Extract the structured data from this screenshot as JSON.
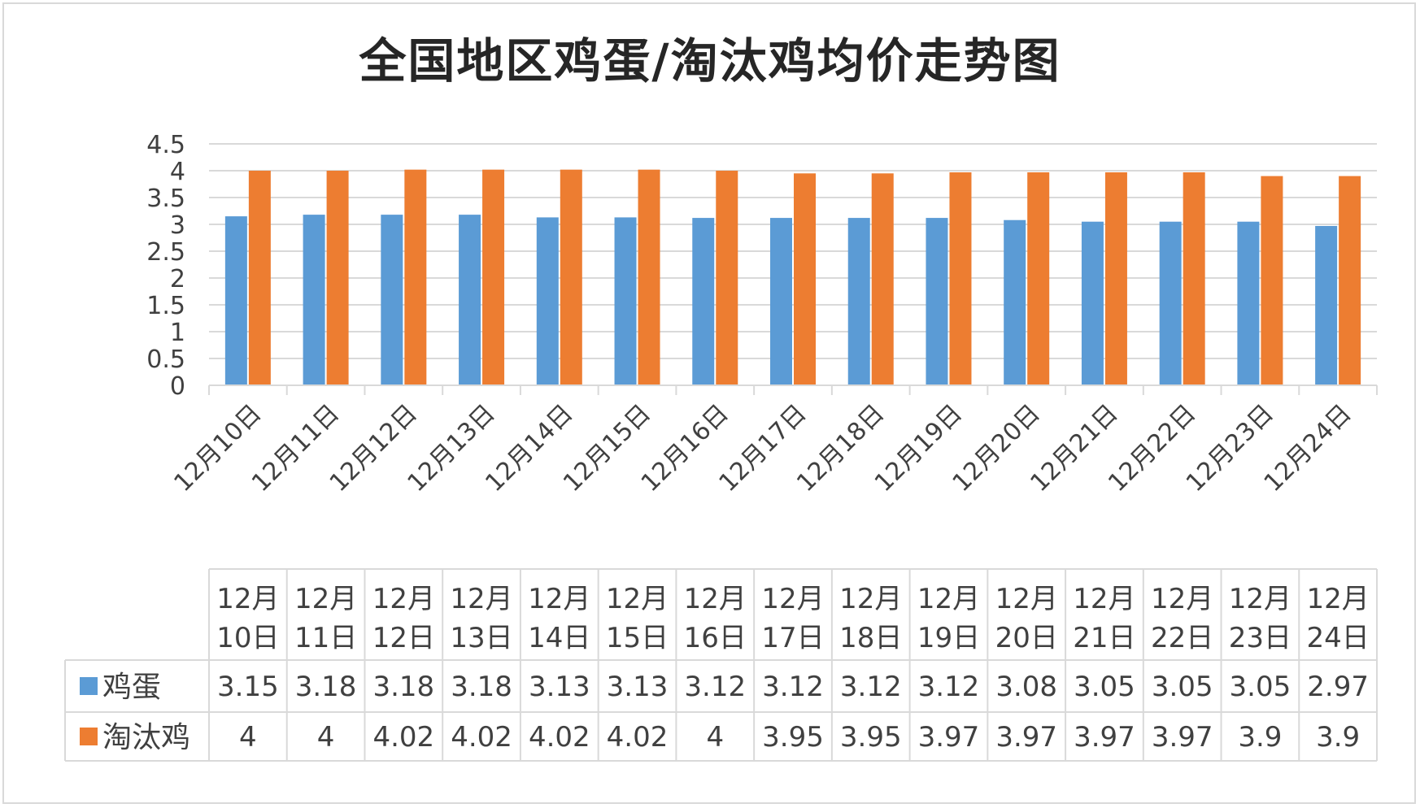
{
  "chart_data": {
    "type": "bar",
    "title": "全国地区鸡蛋/淘汰鸡均价走势图",
    "categories": [
      "12月10日",
      "12月11日",
      "12月12日",
      "12月13日",
      "12月14日",
      "12月15日",
      "12月16日",
      "12月17日",
      "12月18日",
      "12月19日",
      "12月20日",
      "12月21日",
      "12月22日",
      "12月23日",
      "12月24日"
    ],
    "series": [
      {
        "name": "鸡蛋",
        "color": "#5b9bd5",
        "values": [
          3.15,
          3.18,
          3.18,
          3.18,
          3.13,
          3.13,
          3.12,
          3.12,
          3.12,
          3.12,
          3.08,
          3.05,
          3.05,
          3.05,
          2.97
        ]
      },
      {
        "name": "淘汰鸡",
        "color": "#ed7d31",
        "values": [
          4,
          4,
          4.02,
          4.02,
          4.02,
          4.02,
          4,
          3.95,
          3.95,
          3.97,
          3.97,
          3.97,
          3.97,
          3.9,
          3.9
        ]
      }
    ],
    "yticks": [
      "0",
      "0.5",
      "1",
      "1.5",
      "2",
      "2.5",
      "3",
      "3.5",
      "4",
      "4.5"
    ],
    "ylim": [
      0,
      4.5
    ],
    "grid": true,
    "legend": "data-table",
    "table_cells": [
      [
        "3.15",
        "3.18",
        "3.18",
        "3.18",
        "3.13",
        "3.13",
        "3.12",
        "3.12",
        "3.12",
        "3.12",
        "3.08",
        "3.05",
        "3.05",
        "3.05",
        "2.97"
      ],
      [
        "4",
        "4",
        "4.02",
        "4.02",
        "4.02",
        "4.02",
        "4",
        "3.95",
        "3.95",
        "3.97",
        "3.97",
        "3.97",
        "3.97",
        "3.9",
        "3.9"
      ]
    ]
  }
}
